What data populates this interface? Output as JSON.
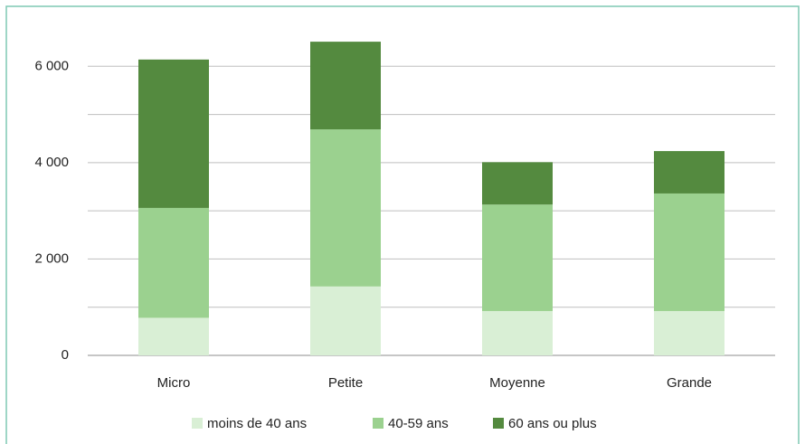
{
  "chart_data": {
    "type": "stacked_bar",
    "categories": [
      "Micro",
      "Petite",
      "Moyenne",
      "Grande"
    ],
    "series": [
      {
        "name": "moins de 40 ans",
        "color": "#d9efd5",
        "values": [
          780,
          1430,
          920,
          920
        ]
      },
      {
        "name": "40-59 ans",
        "color": "#9bd18f",
        "values": [
          2280,
          3260,
          2210,
          2440
        ]
      },
      {
        "name": "60 ans ou plus",
        "color": "#548a3f",
        "values": [
          3080,
          1820,
          880,
          880
        ]
      }
    ],
    "ylim": [
      0,
      7000
    ],
    "yticks": [
      0,
      {
        "value": 2000,
        "label": "2 000"
      },
      {
        "value": 4000,
        "label": "4 000"
      },
      {
        "value": 6000,
        "label": "6 000"
      }
    ],
    "minor_yticks": [
      1000,
      3000,
      5000
    ],
    "grid": true,
    "legend": "bottom"
  }
}
